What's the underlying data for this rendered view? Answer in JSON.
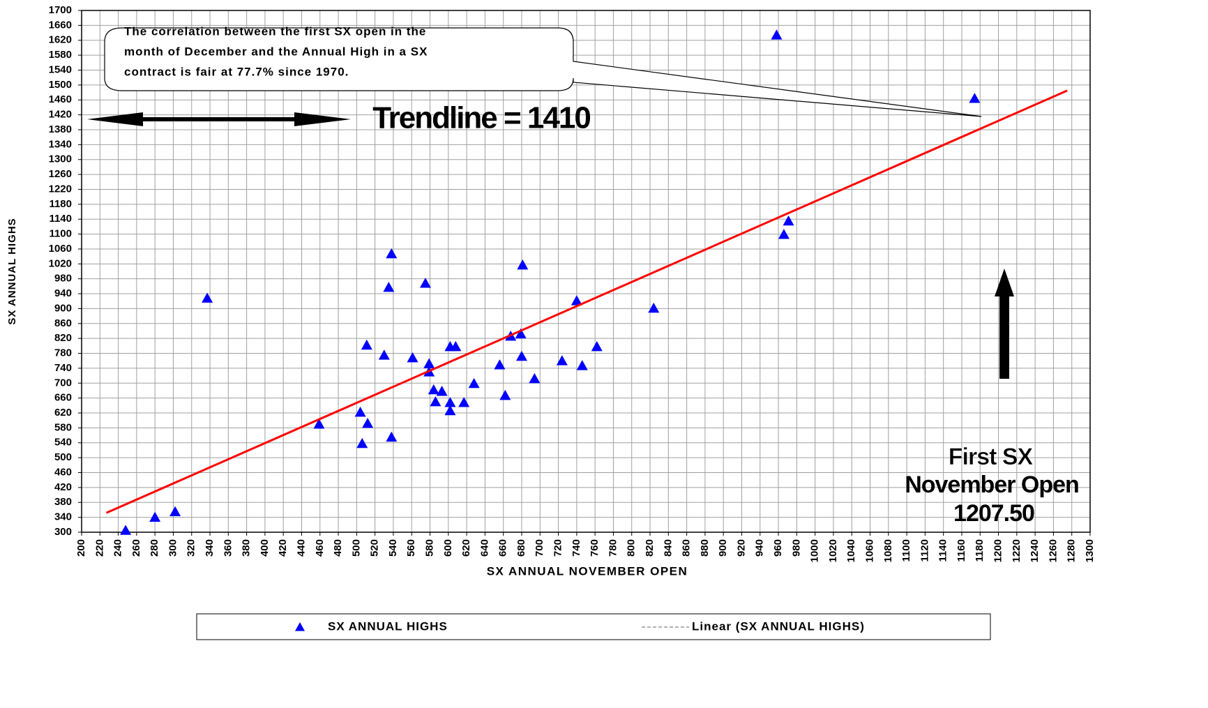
{
  "chart_data": {
    "type": "scatter",
    "xlabel": "SX ANNUAL NOVEMBER OPEN",
    "ylabel": "SX ANNUAL HIGHS",
    "xlim": [
      200,
      1300
    ],
    "ylim": [
      300,
      1700
    ],
    "xticks": [
      200,
      220,
      240,
      260,
      280,
      300,
      320,
      340,
      360,
      380,
      400,
      420,
      440,
      460,
      480,
      500,
      520,
      540,
      560,
      580,
      600,
      620,
      640,
      660,
      680,
      700,
      720,
      740,
      760,
      780,
      800,
      820,
      840,
      860,
      880,
      900,
      920,
      940,
      960,
      980,
      1000,
      1020,
      1040,
      1060,
      1080,
      1100,
      1120,
      1140,
      1160,
      1180,
      1200,
      1220,
      1240,
      1260,
      1280,
      1300
    ],
    "yticks": [
      300,
      340,
      380,
      420,
      460,
      500,
      540,
      580,
      620,
      660,
      700,
      740,
      780,
      820,
      860,
      900,
      940,
      980,
      1020,
      1060,
      1100,
      1140,
      1180,
      1220,
      1260,
      1300,
      1340,
      1380,
      1420,
      1460,
      1500,
      1540,
      1580,
      1620,
      1660,
      1700
    ],
    "grid": true,
    "series": [
      {
        "name": "SX ANNUAL HIGHS",
        "color": "#0000ff",
        "marker": "triangle",
        "x": [
          248,
          280,
          302,
          337,
          459,
          504,
          506,
          512,
          511,
          530,
          535,
          538,
          538,
          561,
          575,
          579,
          579,
          584,
          586,
          593,
          602,
          602,
          602,
          608,
          617,
          628,
          656,
          662,
          668,
          679,
          680,
          681,
          694,
          724,
          740,
          746,
          762,
          824,
          958,
          966,
          971,
          1174
        ],
        "values": [
          305,
          340,
          355,
          928,
          590,
          622,
          538,
          592,
          802,
          775,
          957,
          1047,
          555,
          768,
          968,
          752,
          730,
          682,
          650,
          678,
          798,
          648,
          626,
          798,
          648,
          699,
          749,
          667,
          826,
          832,
          772,
          1017,
          712,
          760,
          921,
          747,
          798,
          901,
          1634,
          1099,
          1135,
          1464
        ]
      },
      {
        "name": "Linear (SX ANNUAL HIGHS)",
        "color": "#ff0000",
        "marker": "line",
        "x": [
          227,
          1275
        ],
        "values": [
          352,
          1485
        ]
      }
    ],
    "annotations": {
      "callout": [
        "The correlation between the first SX open in the",
        "month of December and the Annual High in a SX",
        "contract is fair at 77.7% since 1970."
      ],
      "trendline_label": "Trendline = 1410",
      "open_label": [
        "First SX",
        "November Open",
        "1207.50"
      ]
    }
  }
}
